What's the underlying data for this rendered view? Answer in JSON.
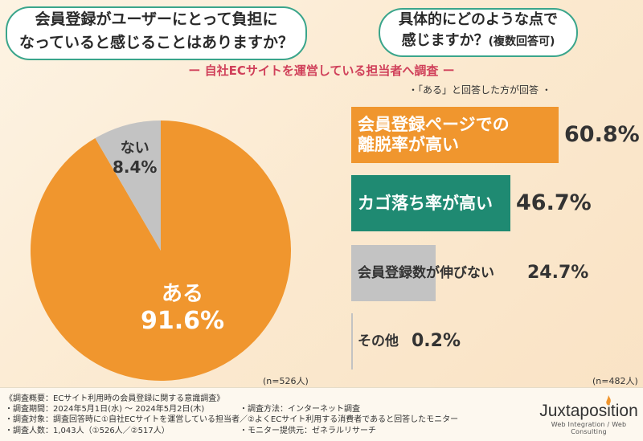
{
  "question1": [
    "会員登録がユーザーにとって負担に",
    "なっていると感じることはありますか？"
  ],
  "question2": {
    "main1": "具体的にどのような点で",
    "main2": "感じますか？",
    "suffix": "(複数回答可)"
  },
  "subtitle": "ー 自社ECサイトを運営している担当者へ調査 ー",
  "note": "・「ある」と回答した方が回答 ・",
  "pie_n": "(n=526人)",
  "bar_n": "(n=482人)",
  "chart_data": [
    {
      "type": "pie",
      "slices": [
        {
          "label": "ある",
          "value": 91.6,
          "display": "91.6%",
          "color": "#f0962e"
        },
        {
          "label": "ない",
          "value": 8.4,
          "display": "8.4%",
          "color": "#c3c3c3"
        }
      ]
    },
    {
      "type": "bar",
      "orientation": "horizontal",
      "categories": [
        "会員登録ページでの離脱率が高い",
        "カゴ落ち率が高い",
        "会員登録数が伸びない",
        "その他"
      ],
      "values": [
        60.8,
        46.7,
        24.7,
        0.2
      ],
      "display": [
        "60.8%",
        "46.7%",
        "24.7%",
        "0.2%"
      ],
      "label_lines": [
        [
          "会員登録ページでの",
          "離脱率が高い"
        ],
        [
          "カゴ落ち率が高い"
        ],
        [
          "会員登録数が伸びない"
        ],
        [
          "その他"
        ]
      ],
      "colors": [
        "#f0962e",
        "#1f8a72",
        "#c3c3c3",
        "#c3c3c3"
      ]
    }
  ],
  "footer": {
    "title": "《調査概要：ECサイト利用時の会員登録に関する意識調査》",
    "period": "・調査期間：2024年5月1日(水) ～ 2024年5月2日(木)",
    "method": "・調査方法：インターネット調査",
    "target": "・調査対象：調査回答時に①自社ECサイトを運営している担当者／②よくECサイト利用する消費者であると回答したモニター",
    "count": "・調査人数：1,043人（①526人／②517人）",
    "provider": "・モニター提供元：ゼネラルリサーチ"
  },
  "logo": {
    "main": "Juxtaposition",
    "sub": "Web Integration / Web Consulting"
  }
}
